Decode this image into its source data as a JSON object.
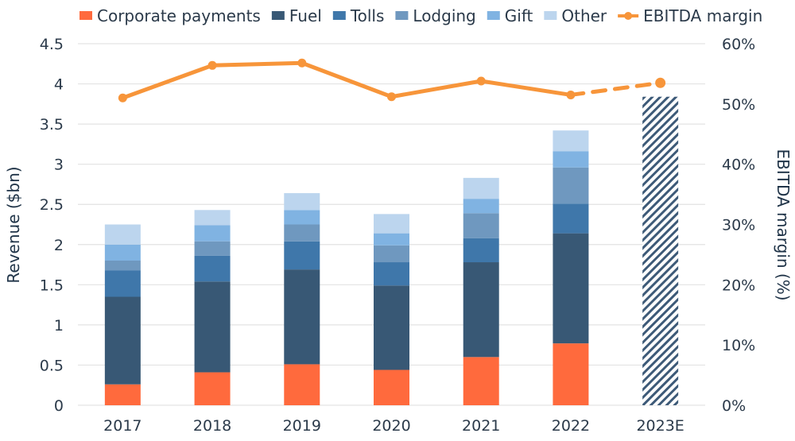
{
  "chart_data": {
    "type": "bar",
    "subtype": "stacked-bar-with-line-secondary-axis",
    "title": "",
    "categories": [
      "2017",
      "2018",
      "2019",
      "2020",
      "2021",
      "2022",
      "2023E"
    ],
    "xlabel": "",
    "ylabel": "Revenue ($bn)",
    "ylabel_right": "EBITDA margin (%)",
    "ylim": [
      0,
      4.5
    ],
    "yticks": [
      "0",
      "0.5",
      "1",
      "1.5",
      "2",
      "2.5",
      "3",
      "3.5",
      "4",
      "4.5"
    ],
    "ylim_right": [
      0,
      60
    ],
    "yticks_right": [
      "0%",
      "10%",
      "20%",
      "30%",
      "40%",
      "50%",
      "60%"
    ],
    "grid": true,
    "legend_position": "top",
    "series": [
      {
        "name": "Corporate payments",
        "color": "#ff6a3d",
        "values": [
          0.26,
          0.41,
          0.51,
          0.44,
          0.6,
          0.77,
          null
        ]
      },
      {
        "name": "Fuel",
        "color": "#385875",
        "values": [
          1.09,
          1.13,
          1.18,
          1.05,
          1.18,
          1.37,
          null
        ]
      },
      {
        "name": "Tolls",
        "color": "#3f77aa",
        "values": [
          0.33,
          0.32,
          0.35,
          0.29,
          0.3,
          0.37,
          null
        ]
      },
      {
        "name": "Lodging",
        "color": "#6f98bf",
        "values": [
          0.12,
          0.18,
          0.21,
          0.21,
          0.31,
          0.45,
          null
        ]
      },
      {
        "name": "Gift",
        "color": "#80b3e2",
        "values": [
          0.2,
          0.2,
          0.18,
          0.15,
          0.18,
          0.2,
          null
        ]
      },
      {
        "name": "Other",
        "color": "#bcd5ee",
        "values": [
          0.25,
          0.19,
          0.21,
          0.24,
          0.26,
          0.26,
          null
        ]
      }
    ],
    "estimate_bar": {
      "category": "2023E",
      "value": 3.84,
      "pattern": "diagonal-hatch",
      "color": "#3d5a78"
    },
    "line_series": {
      "name": "EBITDA margin",
      "color": "#f7953a",
      "axis": "right",
      "values": [
        51.0,
        56.4,
        56.8,
        51.2,
        53.8,
        51.5,
        53.5
      ],
      "dashed_from_index": 5
    }
  }
}
